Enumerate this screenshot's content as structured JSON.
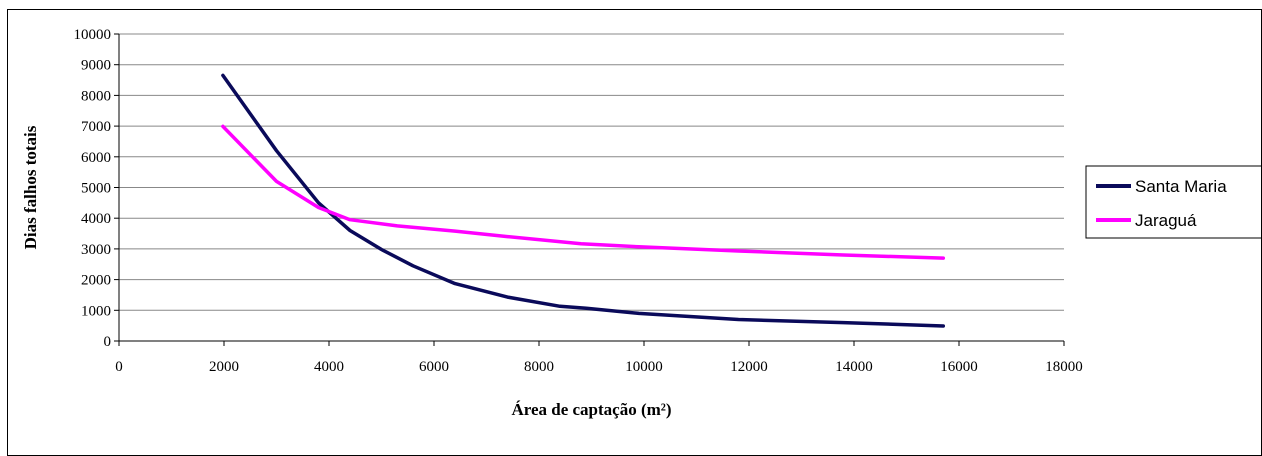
{
  "chart_data": {
    "type": "line",
    "xlabel": "Área de captação (m²)",
    "ylabel": "Dias falhos totais",
    "xlim": [
      0,
      18000
    ],
    "ylim": [
      0,
      10000
    ],
    "x_ticks": [
      "0",
      "2000",
      "4000",
      "6000",
      "8000",
      "10000",
      "12000",
      "14000",
      "16000",
      "18000"
    ],
    "y_ticks": [
      "0",
      "1000",
      "2000",
      "3000",
      "4000",
      "5000",
      "6000",
      "7000",
      "8000",
      "9000",
      "10000"
    ],
    "grid": "horizontal",
    "legend_position": "right",
    "series": [
      {
        "name": "Santa Maria",
        "color": "#0a0a5a",
        "points": [
          [
            1980,
            8650
          ],
          [
            3000,
            6200
          ],
          [
            3800,
            4500
          ],
          [
            4400,
            3600
          ],
          [
            5000,
            2980
          ],
          [
            5600,
            2450
          ],
          [
            6400,
            1870
          ],
          [
            7400,
            1430
          ],
          [
            8400,
            1130
          ],
          [
            8900,
            1070
          ],
          [
            9900,
            900
          ],
          [
            11800,
            700
          ],
          [
            13800,
            600
          ],
          [
            15700,
            490
          ]
        ]
      },
      {
        "name": "Jaraguá",
        "color": "#ff00ff",
        "points": [
          [
            1980,
            6990
          ],
          [
            3000,
            5200
          ],
          [
            3800,
            4350
          ],
          [
            4400,
            3950
          ],
          [
            5300,
            3750
          ],
          [
            6400,
            3580
          ],
          [
            7400,
            3400
          ],
          [
            8800,
            3170
          ],
          [
            9900,
            3070
          ],
          [
            11800,
            2930
          ],
          [
            13800,
            2800
          ],
          [
            15700,
            2700
          ]
        ]
      }
    ]
  }
}
